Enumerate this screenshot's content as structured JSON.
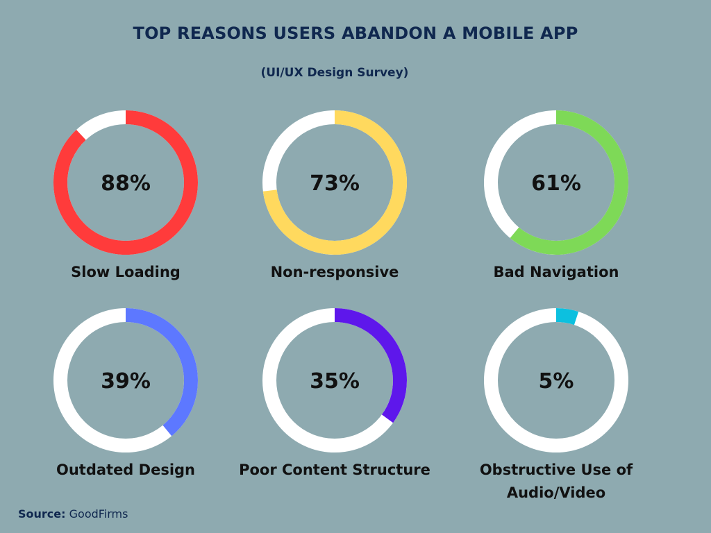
{
  "title": "TOP REASONS USERS ABANDON A MOBILE APP",
  "subtitle": "(UI/UX Design Survey)",
  "source": {
    "label": "Source:",
    "value": "GoodFirms"
  },
  "track_color": "#ffffff",
  "chart_data": {
    "type": "pie",
    "items": [
      {
        "label": "Slow Loading",
        "value": 88,
        "display": "88%",
        "color": "#ff3b3b"
      },
      {
        "label": "Non-responsive",
        "value": 73,
        "display": "73%",
        "color": "#ffd95e"
      },
      {
        "label": "Bad Navigation",
        "value": 61,
        "display": "61%",
        "color": "#7ed957"
      },
      {
        "label": "Outdated Design",
        "value": 39,
        "display": "39%",
        "color": "#5d78ff"
      },
      {
        "label": "Poor Content Structure",
        "value": 35,
        "display": "35%",
        "color": "#5e17eb"
      },
      {
        "label": "Obstructive Use of Audio/Video",
        "value": 5,
        "display": "5%",
        "color": "#0cc0df"
      }
    ]
  }
}
